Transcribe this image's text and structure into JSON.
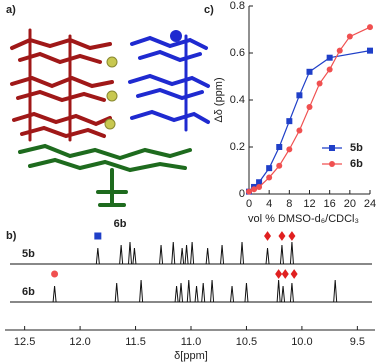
{
  "panel_a": {
    "label": "a)",
    "compound": "6b"
  },
  "chart_data": [
    {
      "type": "spectrum",
      "panel_label": "b)",
      "xlabel": "δ[ppm]",
      "xlim": [
        12.65,
        9.35
      ],
      "xticks": [
        {
          "value": 12.5,
          "label": "12.5"
        },
        {
          "value": 12,
          "label": "12.0"
        },
        {
          "value": 11.5,
          "label": "11.5"
        },
        {
          "value": 11,
          "label": "11.0"
        },
        {
          "value": 10.5,
          "label": "10.5"
        },
        {
          "value": 10,
          "label": "10.0"
        },
        {
          "value": 9.5,
          "label": "9.5"
        }
      ],
      "series": [
        {
          "name": "5b",
          "color": "#111111",
          "peaks": [
            11.84,
            11.63,
            11.55,
            11.51,
            11.27,
            11.16,
            11.08,
            11.04,
            10.99,
            10.85,
            10.72,
            10.54,
            10.31,
            10.18,
            10.09
          ],
          "markers": [
            {
              "x": 11.84,
              "shape": "square",
              "color": "#1f3fc8"
            },
            {
              "x": 10.31,
              "shape": "diamond",
              "color": "#e02020"
            },
            {
              "x": 10.18,
              "shape": "diamond",
              "color": "#e02020"
            },
            {
              "x": 10.09,
              "shape": "diamond",
              "color": "#e02020"
            }
          ]
        },
        {
          "name": "6b",
          "color": "#111111",
          "peaks": [
            12.23,
            11.67,
            11.45,
            11.13,
            11.09,
            11.02,
            10.95,
            10.89,
            10.81,
            10.63,
            10.5,
            10.21,
            10.17,
            10.09,
            9.7
          ],
          "markers": [
            {
              "x": 12.23,
              "shape": "circle",
              "color": "#f05050"
            },
            {
              "x": 10.21,
              "shape": "diamond",
              "color": "#e02020"
            },
            {
              "x": 10.15,
              "shape": "diamond",
              "color": "#e02020"
            },
            {
              "x": 10.07,
              "shape": "diamond",
              "color": "#e02020"
            }
          ]
        }
      ]
    },
    {
      "type": "line",
      "panel_label": "c)",
      "xlabel": "vol % DMSO-d₆/CDCl₃",
      "ylabel": "Δδ (ppm)",
      "xlim": [
        0,
        24
      ],
      "xticks": [
        0,
        4,
        8,
        12,
        16,
        20,
        24
      ],
      "ylim": [
        0,
        0.8
      ],
      "yticks": [
        0,
        0.2,
        0.4,
        0.6,
        0.8
      ],
      "legend": "lower right",
      "series": [
        {
          "name": "5b",
          "color": "#1f3fc8",
          "marker": "square",
          "x": [
            0,
            1,
            2,
            4,
            6,
            8,
            10,
            12,
            16,
            24
          ],
          "values": [
            0.01,
            0.03,
            0.05,
            0.11,
            0.2,
            0.31,
            0.42,
            0.52,
            0.58,
            0.61
          ]
        },
        {
          "name": "6b",
          "color": "#f05050",
          "marker": "circle",
          "x": [
            0,
            1,
            2,
            4,
            6,
            8,
            10,
            12,
            14,
            16,
            18,
            20,
            24
          ],
          "values": [
            0.01,
            0.02,
            0.03,
            0.07,
            0.12,
            0.19,
            0.27,
            0.37,
            0.47,
            0.53,
            0.61,
            0.67,
            0.71
          ]
        }
      ]
    }
  ]
}
